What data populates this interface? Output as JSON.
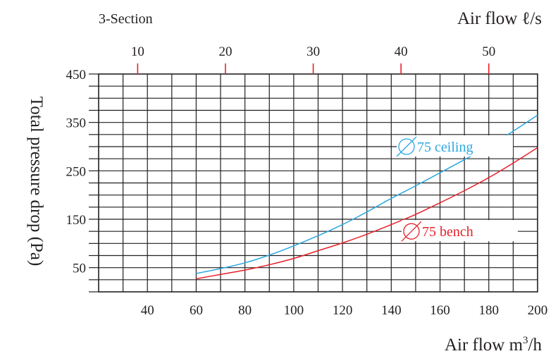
{
  "chart_data": {
    "type": "line",
    "section_label": "3-Section",
    "xlabel_top": "Air flow",
    "xlabel_top_unit": "ℓ/s",
    "xlabel_bottom": "Air flow m",
    "xlabel_bottom_exp": "3",
    "xlabel_bottom_suffix": "/h",
    "ylabel": "Total pressure drop (Pa)",
    "xlim": [
      20,
      200
    ],
    "ylim": [
      0,
      450
    ],
    "x_ticks": [
      40,
      60,
      80,
      100,
      120,
      140,
      160,
      180,
      200
    ],
    "y_ticks": [
      50,
      150,
      250,
      350,
      450
    ],
    "top_ticks": [
      10,
      20,
      30,
      40,
      50
    ],
    "top_tick_factor": 3.6,
    "grid": true,
    "colors": {
      "grid": "#231f20",
      "top_tick": "#e8202a"
    },
    "series": [
      {
        "name": "75 ceiling",
        "color": "#2aa7df",
        "label_x": 148,
        "label_y": 300,
        "x": [
          60,
          70,
          80,
          90,
          100,
          110,
          120,
          130,
          140,
          150,
          160,
          170,
          180,
          190,
          200
        ],
        "y": [
          38,
          48,
          60,
          76,
          95,
          116,
          139,
          165,
          193,
          219,
          246,
          273,
          301,
          332,
          365
        ]
      },
      {
        "name": "75 bench",
        "color": "#e8202a",
        "label_x": 150,
        "label_y": 125,
        "x": [
          60,
          70,
          80,
          90,
          100,
          110,
          120,
          130,
          140,
          150,
          160,
          170,
          180,
          190,
          200
        ],
        "y": [
          27,
          36,
          45,
          56,
          69,
          85,
          101,
          119,
          139,
          160,
          184,
          209,
          236,
          266,
          298
        ]
      }
    ]
  }
}
